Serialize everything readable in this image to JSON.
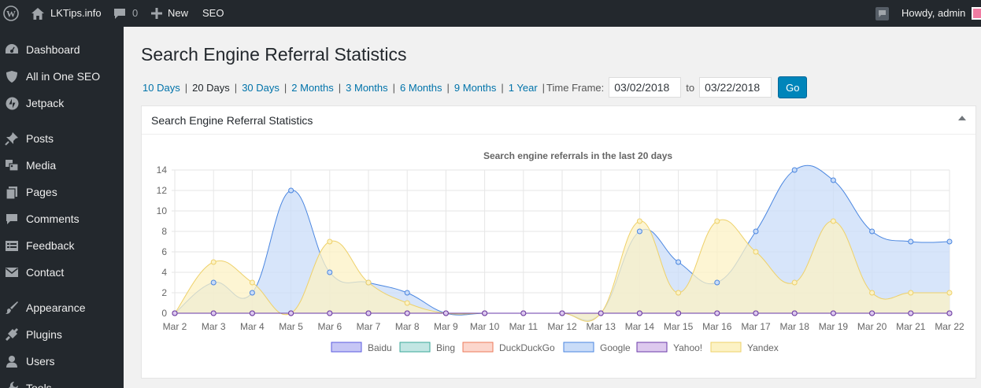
{
  "adminbar": {
    "site_name": "LKTips.info",
    "comments_count": "0",
    "new_label": "New",
    "seo_label": "SEO",
    "howdy": "Howdy, admin"
  },
  "sidebar": {
    "items": [
      {
        "label": "Dashboard",
        "icon": "dashboard-icon"
      },
      {
        "label": "All in One SEO",
        "icon": "shield-icon"
      },
      {
        "label": "Jetpack",
        "icon": "jetpack-icon"
      },
      {
        "label": "Posts",
        "icon": "pin-icon"
      },
      {
        "label": "Media",
        "icon": "media-icon"
      },
      {
        "label": "Pages",
        "icon": "pages-icon"
      },
      {
        "label": "Comments",
        "icon": "comment-icon"
      },
      {
        "label": "Feedback",
        "icon": "feedback-icon"
      },
      {
        "label": "Contact",
        "icon": "mail-icon"
      },
      {
        "label": "Appearance",
        "icon": "brush-icon"
      },
      {
        "label": "Plugins",
        "icon": "plugin-icon"
      },
      {
        "label": "Users",
        "icon": "user-icon"
      },
      {
        "label": "Tools",
        "icon": "tools-icon"
      }
    ]
  },
  "page": {
    "title": "Search Engine Referral Statistics",
    "ranges": [
      "10 Days",
      "20 Days",
      "30 Days",
      "2 Months",
      "3 Months",
      "6 Months",
      "9 Months",
      "1 Year"
    ],
    "current_range": "20 Days",
    "timeframe_label": "Time Frame:",
    "from_date": "03/02/2018",
    "to_label": "to",
    "to_date": "03/22/2018",
    "go_label": "Go"
  },
  "postbox": {
    "title": "Search Engine Referral Statistics"
  },
  "chart_data": {
    "type": "area",
    "title": "Search engine referrals in the last 20 days",
    "xlabel": "",
    "ylabel": "",
    "ylim": [
      0,
      14
    ],
    "yticks": [
      0,
      2,
      4,
      6,
      8,
      10,
      12,
      14
    ],
    "grid": true,
    "legend_position": "bottom",
    "categories": [
      "Mar 2",
      "Mar 3",
      "Mar 4",
      "Mar 5",
      "Mar 6",
      "Mar 7",
      "Mar 8",
      "Mar 9",
      "Mar 10",
      "Mar 11",
      "Mar 12",
      "Mar 13",
      "Mar 14",
      "Mar 15",
      "Mar 16",
      "Mar 17",
      "Mar 18",
      "Mar 19",
      "Mar 20",
      "Mar 21",
      "Mar 22"
    ],
    "series": [
      {
        "name": "Baidu",
        "fill": "#c6c6f5",
        "stroke": "#5b5be0",
        "values": [
          0,
          0,
          0,
          0,
          0,
          0,
          0,
          0,
          0,
          0,
          0,
          0,
          0,
          0,
          0,
          0,
          0,
          0,
          0,
          0,
          0
        ]
      },
      {
        "name": "Bing",
        "fill": "#c2e6e3",
        "stroke": "#3aa89a",
        "values": [
          0,
          0,
          0,
          0,
          0,
          0,
          0,
          0,
          0,
          0,
          0,
          0,
          0,
          0,
          0,
          0,
          0,
          0,
          0,
          0,
          0
        ]
      },
      {
        "name": "DuckDuckGo",
        "fill": "#fcd6cc",
        "stroke": "#ec7a5a",
        "values": [
          0,
          0,
          0,
          0,
          0,
          0,
          0,
          0,
          0,
          0,
          0,
          0,
          0,
          0,
          0,
          0,
          0,
          0,
          0,
          0,
          0
        ]
      },
      {
        "name": "Google",
        "fill": "#c9dcf8",
        "stroke": "#4a86e0",
        "values": [
          0,
          3,
          2,
          12,
          4,
          3,
          2,
          0,
          0,
          0,
          0,
          0,
          8,
          5,
          3,
          8,
          14,
          13,
          8,
          7,
          7
        ]
      },
      {
        "name": "Yahoo!",
        "fill": "#ddc9ee",
        "stroke": "#6a3aa8",
        "values": [
          0,
          0,
          0,
          0,
          0,
          0,
          0,
          0,
          0,
          0,
          0,
          0,
          0,
          0,
          0,
          0,
          0,
          0,
          0,
          0,
          0
        ]
      },
      {
        "name": "Yandex",
        "fill": "#fcf2c4",
        "stroke": "#eed16a",
        "values": [
          0,
          5,
          3,
          0,
          7,
          3,
          1,
          0,
          0,
          0,
          0,
          0,
          9,
          2,
          9,
          6,
          3,
          9,
          2,
          2,
          2
        ]
      }
    ]
  }
}
